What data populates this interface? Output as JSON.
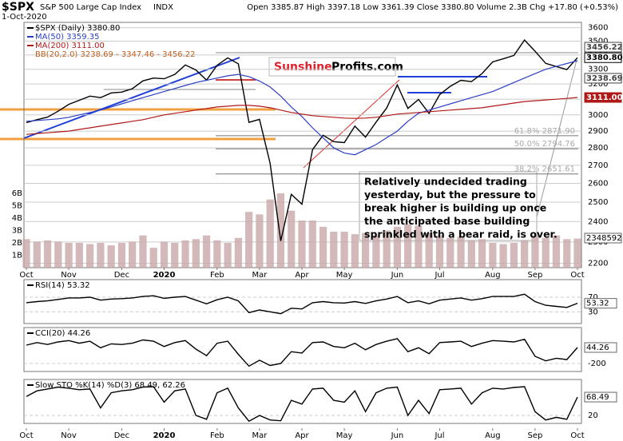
{
  "header": {
    "symbol": "$SPX",
    "name": "S&P 500 Large Cap Index",
    "exchange": "INDX",
    "date": "1-Oct-2020",
    "quote": "Open 3385.87 High 3397.18 Low 3361.39 Close 3380.80 Volume 2.3B Chg +17.80 (+0.53%)"
  },
  "chart_data": [
    {
      "type": "line",
      "log_scale": true,
      "categories": [
        "Oct",
        null,
        null,
        null,
        "Nov",
        null,
        null,
        null,
        null,
        "Dec",
        null,
        null,
        null,
        "2020",
        null,
        null,
        null,
        null,
        "Feb",
        null,
        null,
        null,
        "Mar",
        null,
        null,
        null,
        "Apr",
        null,
        null,
        null,
        "May",
        null,
        null,
        null,
        null,
        "Jun",
        null,
        null,
        null,
        "Jul",
        null,
        null,
        null,
        null,
        "Aug",
        null,
        null,
        null,
        "Sep",
        null,
        null,
        null,
        "Oct"
      ],
      "series": [
        {
          "name": "$SPX (Daily) 3380.80",
          "color": "#000000",
          "values": [
            2952,
            2970,
            2986,
            3023,
            3067,
            3093,
            3120,
            3110,
            3141,
            3146,
            3169,
            3221,
            3240,
            3235,
            3265,
            3330,
            3295,
            3226,
            3328,
            3380,
            3338,
            2954,
            2972,
            2711,
            2305,
            2541,
            2489,
            2790,
            2875,
            2837,
            2831,
            2930,
            2864,
            2955,
            3044,
            3194,
            3041,
            3098,
            3009,
            3130,
            3185,
            3225,
            3216,
            3271,
            3351,
            3373,
            3397,
            3508,
            3427,
            3341,
            3319,
            3298,
            3380.8
          ]
        },
        {
          "name": "MA(50) 3359.35",
          "color": "#2b3fc4",
          "values": [
            2960,
            2965,
            2970,
            2975,
            2985,
            3000,
            3015,
            3030,
            3050,
            3070,
            3090,
            3110,
            3130,
            3150,
            3170,
            3190,
            3210,
            3225,
            3240,
            3255,
            3265,
            3250,
            3220,
            3180,
            3120,
            3050,
            2990,
            2920,
            2860,
            2800,
            2770,
            2760,
            2790,
            2820,
            2860,
            2900,
            2960,
            3010,
            3030,
            3050,
            3070,
            3090,
            3110,
            3130,
            3150,
            3180,
            3210,
            3240,
            3270,
            3300,
            3320,
            3340,
            3359.35
          ]
        },
        {
          "name": "MA(200) 3111.00",
          "color": "#b01818",
          "values": [
            2880,
            2885,
            2890,
            2895,
            2900,
            2910,
            2920,
            2930,
            2940,
            2950,
            2960,
            2970,
            2985,
            3000,
            3010,
            3020,
            3030,
            3040,
            3050,
            3055,
            3060,
            3060,
            3055,
            3045,
            3030,
            3015,
            3005,
            2995,
            2990,
            2985,
            2980,
            2978,
            2980,
            2985,
            2995,
            3005,
            3010,
            3015,
            3020,
            3025,
            3030,
            3035,
            3040,
            3045,
            3055,
            3065,
            3075,
            3085,
            3090,
            3095,
            3100,
            3105,
            3111
          ]
        },
        {
          "name": "Volume 2,348,592,640",
          "color": "#c8a8a8",
          "axis": "y2",
          "values": [
            2.3,
            2.1,
            2.2,
            2.1,
            2.0,
            2.0,
            1.9,
            2.0,
            1.8,
            2.0,
            2.1,
            2.6,
            1.6,
            2.1,
            2.0,
            2.2,
            2.3,
            2.6,
            2.2,
            2.0,
            2.4,
            4.5,
            4.3,
            5.5,
            6.0,
            4.6,
            3.8,
            3.8,
            3.3,
            2.9,
            2.9,
            2.7,
            2.8,
            2.6,
            3.0,
            3.3,
            3.5,
            3.4,
            2.8,
            2.6,
            2.4,
            2.5,
            2.2,
            2.3,
            2.0,
            1.9,
            2.0,
            2.2,
            2.6,
            2.4,
            2.6,
            2.3,
            2.34859264
          ]
        }
      ],
      "bb_legend": "BB(20,2.0) 3238.69 - 3347.46 - 3456.22",
      "ylim": [
        2180,
        3640
      ],
      "yticks": [
        2200,
        2300,
        2400,
        2500,
        2600,
        2700,
        2800,
        2900,
        3000,
        3100,
        3200,
        3300,
        3400,
        3500,
        3600
      ],
      "y2lim": [
        0,
        19.8
      ],
      "y2ticks": [
        {
          "value": 1,
          "label": "1B"
        },
        {
          "value": 2,
          "label": "2B"
        },
        {
          "value": 3,
          "label": "3B"
        },
        {
          "value": 4,
          "label": "4B"
        },
        {
          "value": 5,
          "label": "5B"
        },
        {
          "value": 6,
          "label": "6B"
        }
      ],
      "price_labels": [
        {
          "value": 3456.22,
          "label": "3456.22",
          "color": "#444444"
        },
        {
          "value": 3380.8,
          "label": "3380.80",
          "color": "#000000"
        },
        {
          "value": 3238.69,
          "label": "3238.69",
          "color": "#444444"
        },
        {
          "value": 3111.0,
          "label": "3111.00",
          "color": "#b01818"
        }
      ],
      "volume_label": "2348592",
      "levels": [
        {
          "value": 2871.9,
          "label": "61.8% 2871.90"
        },
        {
          "value": 2794.76,
          "label": "50.0% 2794.76"
        },
        {
          "value": 2651.61,
          "label": "38.2% 2651.61"
        }
      ],
      "logo": [
        "Sunshine",
        "Profits.com"
      ],
      "annotation": [
        "Relatively undecided trading",
        "yesterday, but the pressure to",
        "break higher is building up once",
        "the anticipated base building",
        "sprinkled with a bear raid, is over."
      ]
    },
    {
      "type": "line",
      "series": [
        {
          "name": "RSI(14) 53.32",
          "color": "#000000",
          "values": [
            55,
            58,
            60,
            64,
            68,
            68,
            70,
            62,
            65,
            66,
            68,
            72,
            74,
            67,
            70,
            72,
            62,
            52,
            63,
            70,
            60,
            28,
            35,
            30,
            25,
            40,
            38,
            55,
            58,
            55,
            54,
            58,
            53,
            60,
            65,
            72,
            55,
            60,
            52,
            62,
            65,
            68,
            62,
            66,
            72,
            72,
            72,
            78,
            58,
            48,
            45,
            42,
            53.32
          ]
        }
      ],
      "ylim": [
        -2,
        118
      ],
      "yticks": [
        70,
        30
      ]
    },
    {
      "type": "line",
      "series": [
        {
          "name": "CCI(20) 44.26",
          "color": "#000000",
          "values": [
            80,
            120,
            90,
            130,
            150,
            110,
            140,
            40,
            100,
            90,
            110,
            160,
            140,
            60,
            120,
            150,
            20,
            -80,
            110,
            140,
            -60,
            -240,
            -150,
            -230,
            -200,
            -20,
            -40,
            120,
            130,
            60,
            40,
            110,
            10,
            90,
            140,
            180,
            -20,
            40,
            -50,
            120,
            130,
            140,
            60,
            110,
            150,
            140,
            130,
            170,
            -90,
            -160,
            -120,
            -140,
            44.26
          ]
        }
      ],
      "ylim": [
        -322,
        349
      ],
      "yticks": [
        -200
      ]
    },
    {
      "type": "line",
      "series": [
        {
          "name": "Slow STO %K(14) %D(3) 68.49, 62.26",
          "color": "#000000",
          "values": [
            70,
            85,
            90,
            95,
            92,
            88,
            90,
            40,
            80,
            85,
            88,
            95,
            96,
            55,
            85,
            90,
            20,
            10,
            80,
            92,
            40,
            5,
            20,
            8,
            6,
            60,
            50,
            90,
            92,
            60,
            55,
            85,
            30,
            80,
            92,
            95,
            20,
            60,
            25,
            88,
            90,
            92,
            50,
            80,
            92,
            90,
            94,
            96,
            30,
            8,
            15,
            10,
            68.49
          ]
        }
      ],
      "ylim": [
        -1,
        115
      ],
      "yticks": [
        20
      ]
    }
  ]
}
